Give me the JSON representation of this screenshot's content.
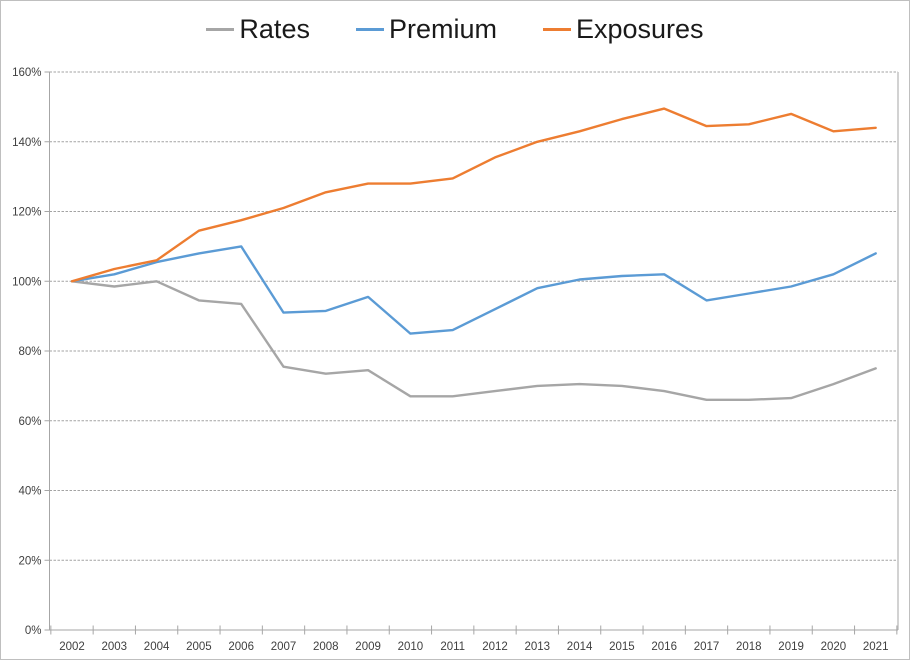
{
  "chart_data": {
    "type": "line",
    "title": "",
    "xlabel": "",
    "ylabel": "",
    "x": [
      "2002",
      "2003",
      "2004",
      "2005",
      "2006",
      "2007",
      "2008",
      "2009",
      "2010",
      "2011",
      "2012",
      "2013",
      "2014",
      "2015",
      "2016",
      "2017",
      "2018",
      "2019",
      "2020",
      "2021"
    ],
    "series": [
      {
        "name": "Rates",
        "color": "#a6a6a6",
        "values": [
          100,
          98.5,
          100,
          94.5,
          93.5,
          75.5,
          73.5,
          74.5,
          67,
          67,
          68.5,
          70,
          70.5,
          70,
          68.5,
          66,
          66,
          66.5,
          70.5,
          75
        ]
      },
      {
        "name": "Premium",
        "color": "#5b9bd5",
        "values": [
          100,
          102,
          105.5,
          108,
          110,
          91,
          91.5,
          95.5,
          85,
          86,
          92,
          98,
          100.5,
          101.5,
          102,
          94.5,
          96.5,
          98.5,
          102,
          108
        ]
      },
      {
        "name": "Exposures",
        "color": "#ed7d31",
        "values": [
          100,
          103.5,
          106,
          114.5,
          117.5,
          121,
          125.5,
          128,
          128,
          129.5,
          135.5,
          140,
          143,
          146.5,
          149.5,
          144.5,
          145,
          148,
          143,
          144
        ]
      }
    ],
    "y_tick_labels": [
      "0%",
      "20%",
      "40%",
      "60%",
      "80%",
      "100%",
      "120%",
      "140%",
      "160%"
    ],
    "ylim": [
      0,
      160
    ],
    "y_tick_step": 20,
    "grid": true,
    "legend_position": "top",
    "legend_labels": [
      "Rates",
      "Premium",
      "Exposures"
    ],
    "colors": {
      "rates": "#a6a6a6",
      "premium": "#5b9bd5",
      "exposures": "#ed7d31",
      "gridline": "#a3a3a3",
      "axis": "#a6a6a6",
      "tick_text": "#404040",
      "legend_text": "#1a1a1a",
      "frame_border": "#bfbfbf"
    }
  }
}
